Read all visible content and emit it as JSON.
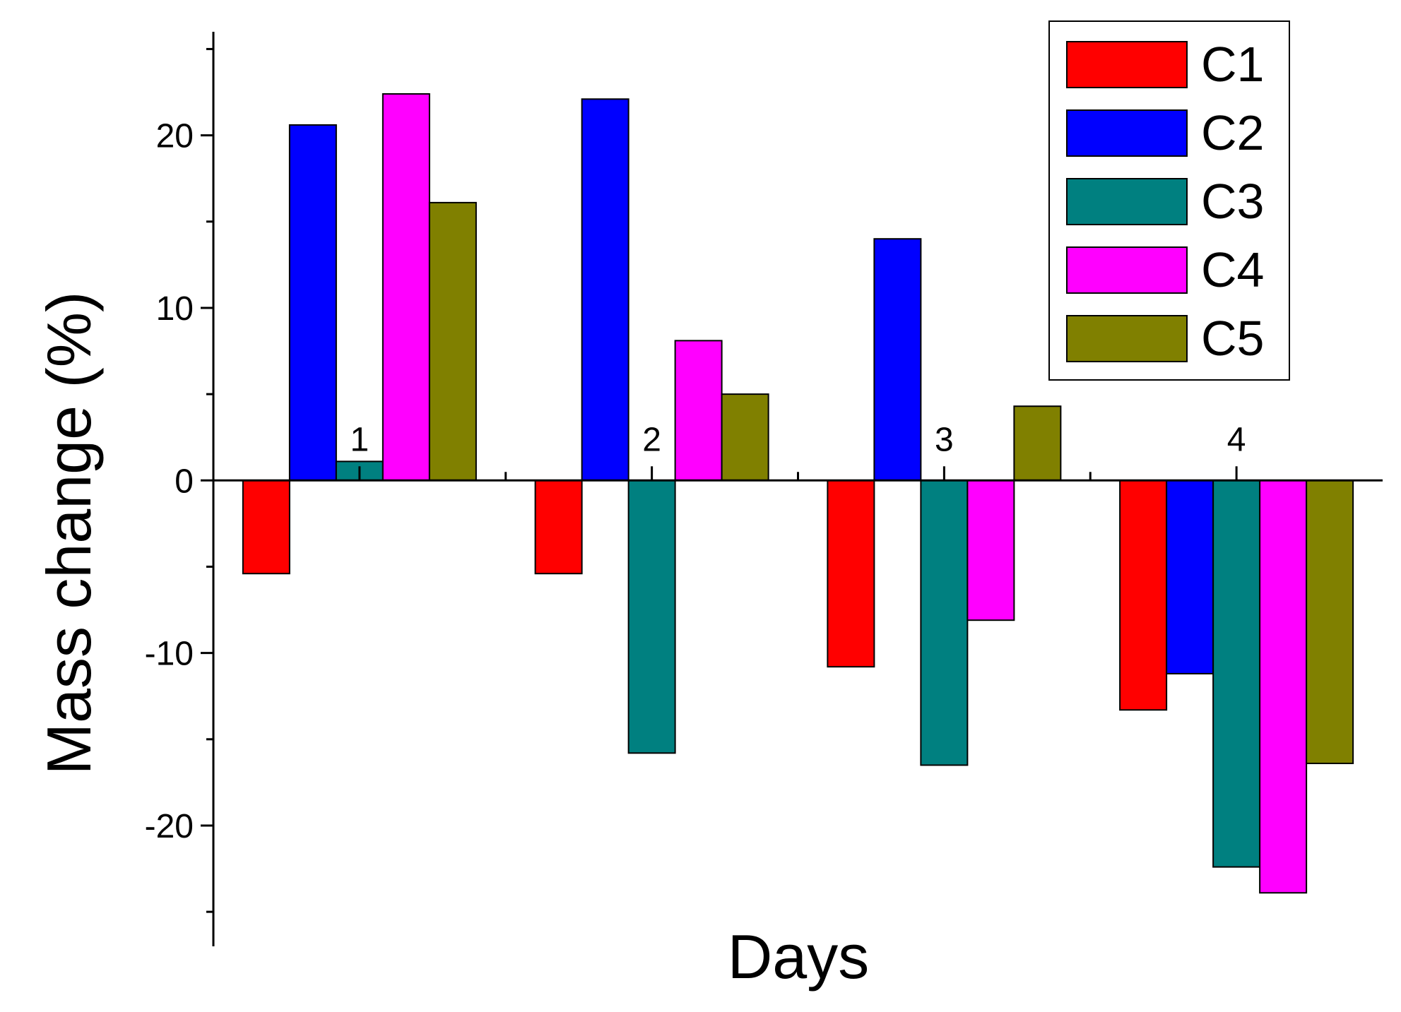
{
  "chart_data": {
    "type": "bar",
    "title": "",
    "xlabel": "Days",
    "ylabel": "Mass change (%)",
    "categories": [
      "1",
      "2",
      "3",
      "4"
    ],
    "ylim": [
      -27,
      26
    ],
    "yticks": [
      -20,
      -10,
      0,
      10,
      20
    ],
    "grid": false,
    "legend_position": "top-right",
    "series": [
      {
        "name": "C1",
        "color": "#ff0000",
        "values": [
          -5.4,
          -5.4,
          -10.8,
          -13.3
        ]
      },
      {
        "name": "C2",
        "color": "#0000ff",
        "values": [
          20.6,
          22.1,
          14.0,
          -11.2
        ]
      },
      {
        "name": "C3",
        "color": "#008080",
        "values": [
          1.1,
          -15.8,
          -16.5,
          -22.4
        ]
      },
      {
        "name": "C4",
        "color": "#ff00ff",
        "values": [
          22.4,
          8.1,
          -8.1,
          -23.9
        ]
      },
      {
        "name": "C5",
        "color": "#808000",
        "values": [
          16.1,
          5.0,
          4.3,
          -16.4
        ]
      }
    ]
  }
}
